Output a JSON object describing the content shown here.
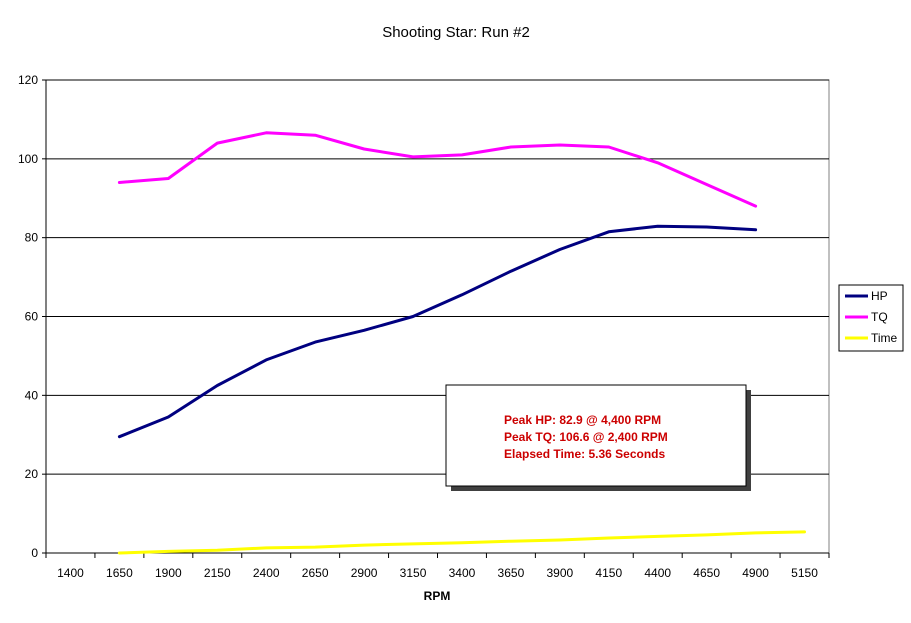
{
  "chart_data": {
    "type": "line",
    "title": "Shooting Star: Run #2",
    "xlabel": "RPM",
    "ylabel": "",
    "categories": [
      "1400",
      "1650",
      "1900",
      "2150",
      "2400",
      "2650",
      "2900",
      "3150",
      "3400",
      "3650",
      "3900",
      "4150",
      "4400",
      "4650",
      "4900",
      "5150"
    ],
    "ylim": [
      0,
      120
    ],
    "yticks": [
      0,
      20,
      40,
      60,
      80,
      100,
      120
    ],
    "grid": "horizontal",
    "legend_position": "right",
    "series": [
      {
        "name": "HP",
        "color": "#000080",
        "values": [
          null,
          29.5,
          34.5,
          42.5,
          49,
          53.5,
          56.5,
          60,
          65.5,
          71.5,
          77,
          81.5,
          82.9,
          82.7,
          82,
          null
        ]
      },
      {
        "name": "TQ",
        "color": "#FF00FF",
        "values": [
          null,
          94,
          95,
          104,
          106.6,
          106,
          102.5,
          100.5,
          101,
          103,
          103.5,
          103,
          99,
          93.5,
          88,
          null
        ]
      },
      {
        "name": "Time",
        "color": "#FFFF00",
        "values": [
          null,
          0,
          0.4,
          0.7,
          1.3,
          1.5,
          2,
          2.3,
          2.6,
          3,
          3.3,
          3.8,
          4.2,
          4.6,
          5.1,
          5.36
        ]
      }
    ],
    "annotation": {
      "lines": [
        "Peak HP: 82.9 @ 4,400 RPM",
        "Peak TQ: 106.6 @ 2,400 RPM",
        "Elapsed Time: 5.36 Seconds"
      ],
      "color": "#CC0000"
    }
  }
}
